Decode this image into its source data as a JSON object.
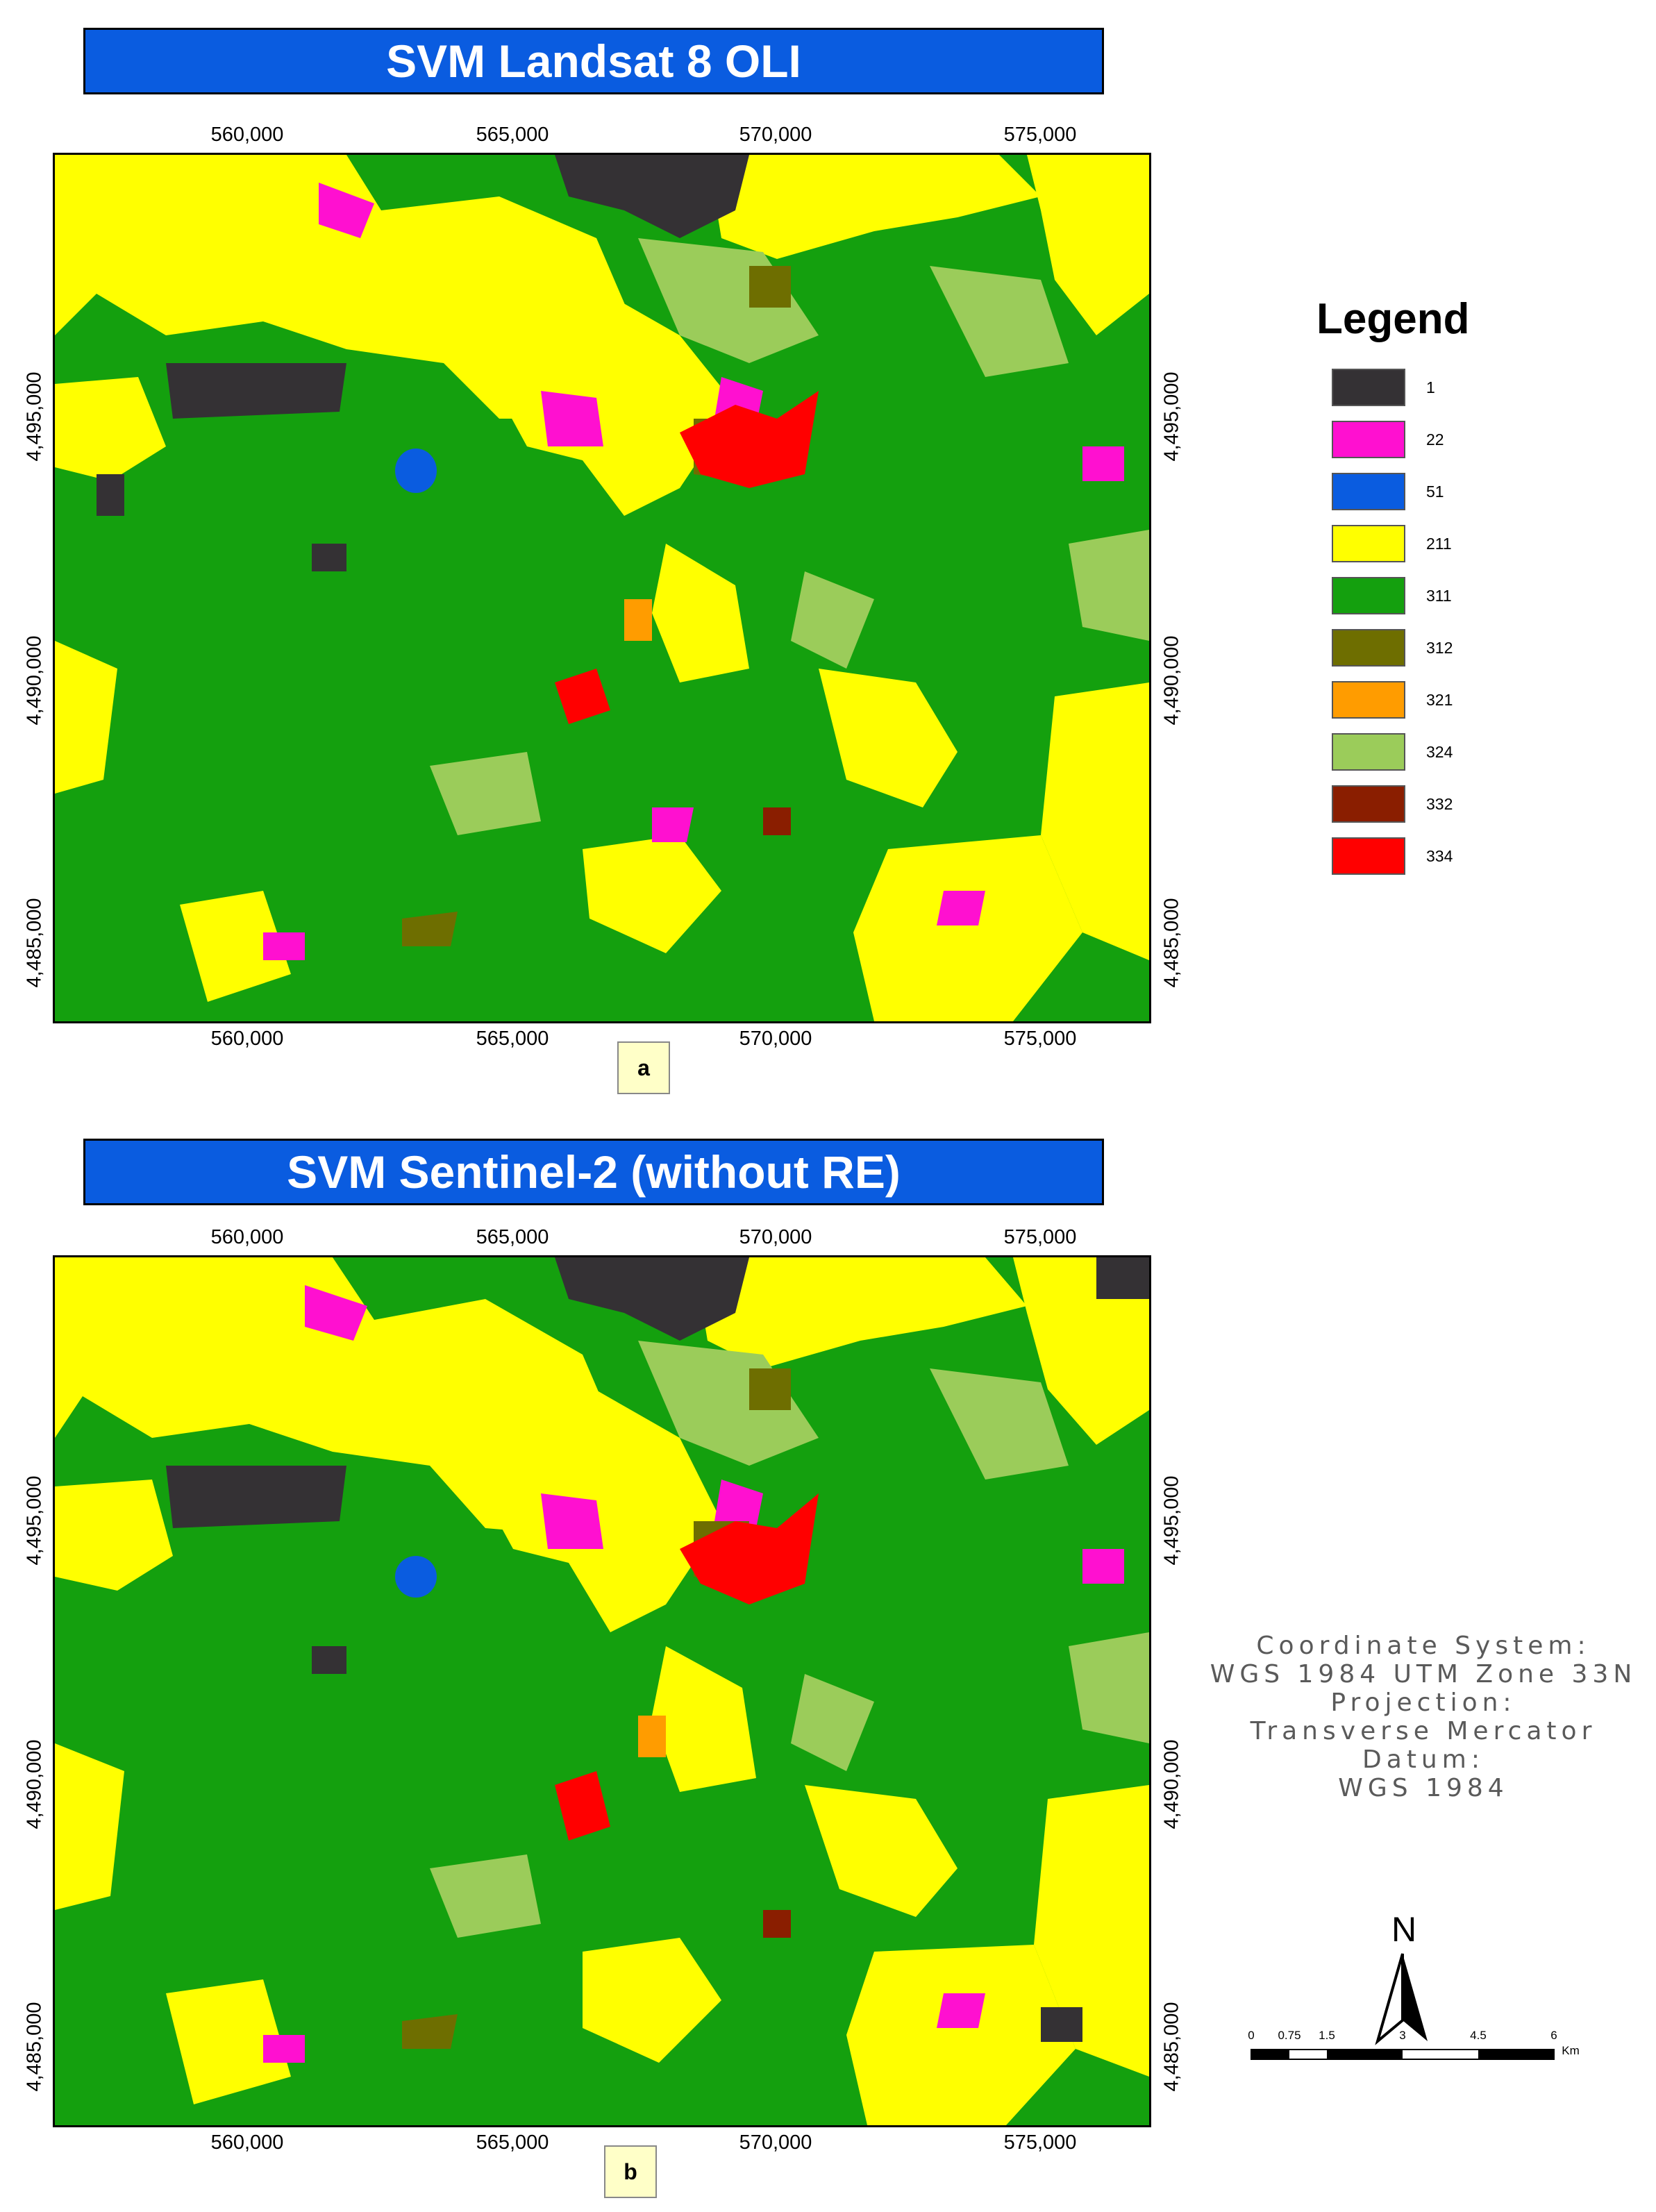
{
  "panels": [
    {
      "title": "SVM Landsat 8 OLI",
      "label": "a",
      "x_ticks_top": [
        "560,000",
        "565,000",
        "570,000",
        "575,000"
      ],
      "x_ticks_bottom": [
        "560,000",
        "565,000",
        "570,000",
        "575,000"
      ],
      "y_ticks_left": [
        "4,495,000",
        "4,490,000",
        "4,485,000"
      ],
      "y_ticks_right": [
        "4,495,000",
        "4,490,000",
        "4,485,000"
      ]
    },
    {
      "title": "SVM Sentinel-2 (without RE)",
      "label": "b",
      "x_ticks_top": [
        "560,000",
        "565,000",
        "570,000",
        "575,000"
      ],
      "x_ticks_bottom": [
        "560,000",
        "565,000",
        "570,000",
        "575,000"
      ],
      "y_ticks_left": [
        "4,495,000",
        "4,490,000",
        "4,485,000"
      ],
      "y_ticks_right": [
        "4,495,000",
        "4,490,000",
        "4,485,000"
      ]
    }
  ],
  "legend": {
    "title": "Legend",
    "items": [
      {
        "label": "1",
        "color": "#343134"
      },
      {
        "label": "22",
        "color": "#ff10d0"
      },
      {
        "label": "51",
        "color": "#0a5ce0"
      },
      {
        "label": "211",
        "color": "#ffff00"
      },
      {
        "label": "311",
        "color": "#14a00e"
      },
      {
        "label": "312",
        "color": "#6e6e00"
      },
      {
        "label": "321",
        "color": "#ff9c00"
      },
      {
        "label": "324",
        "color": "#9bcc5a"
      },
      {
        "label": "332",
        "color": "#8a1e00"
      },
      {
        "label": "334",
        "color": "#ff0000"
      }
    ]
  },
  "coordinate_info": [
    "Coordinate System:",
    "WGS 1984 UTM Zone 33N",
    "Projection:",
    "Transverse Mercator",
    "Datum:",
    "WGS 1984"
  ],
  "north_arrow": {
    "label": "N"
  },
  "scale_bar": {
    "ticks": [
      "0",
      "0.75",
      "1.5",
      "3",
      "4.5",
      "6"
    ],
    "unit": "Km"
  }
}
